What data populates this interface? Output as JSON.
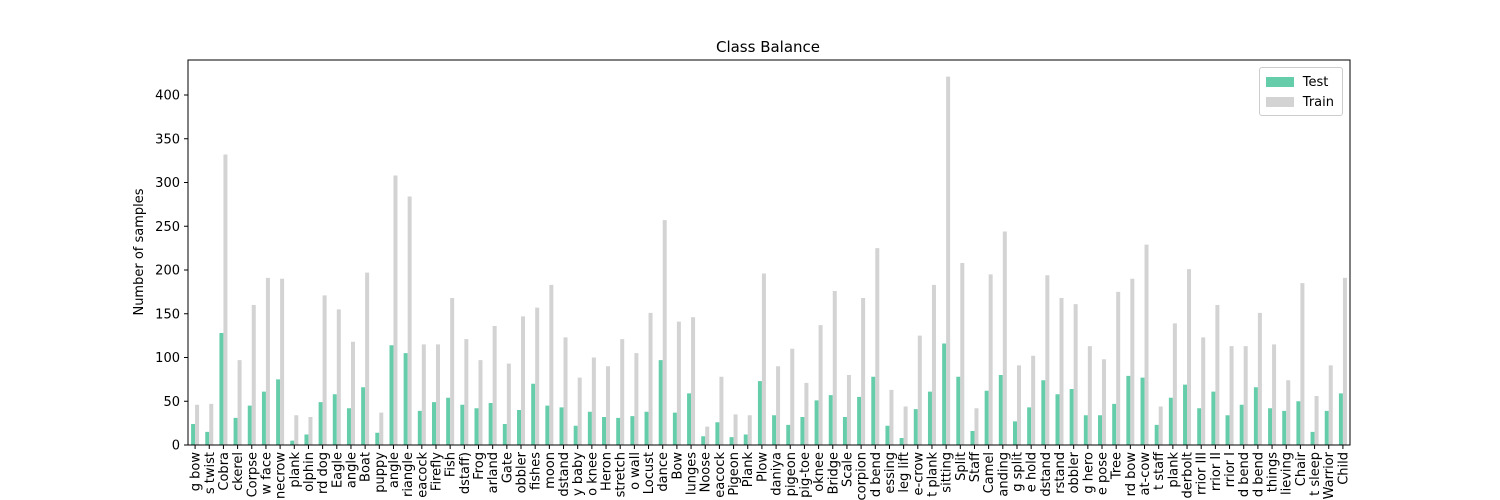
{
  "chart_data": {
    "type": "bar",
    "title": "Class Balance",
    "xlabel": "",
    "ylabel": "Number of samples",
    "ylim": [
      0,
      440
    ],
    "yticks": [
      0,
      50,
      100,
      150,
      200,
      250,
      300,
      350,
      400
    ],
    "grid": false,
    "legend_position": "top-right",
    "categories": [
      "g bow",
      "s twist",
      "Cobra",
      "ckerel",
      "Corpse",
      "w face",
      "necrow",
      "plank",
      "olphin",
      "rd dog",
      "Eagle",
      "angle",
      "Boat",
      "puppy",
      "angle",
      "riangle",
      "eacock",
      "Firefly",
      "Fish",
      "dstaff)",
      "Frog",
      "arland",
      "Gate",
      "obbler",
      "fishes",
      "moon",
      "dstand",
      "y baby",
      "o knee",
      "Heron",
      "stretch",
      "o wall",
      "Locust",
      "dance",
      "Bow",
      "lunges",
      "Noose",
      "eacock",
      "Pigeon",
      "Plank",
      "Plow",
      "daniya",
      "pigeon",
      "pig-toe",
      "oknee",
      "Bridge",
      "Scale",
      "corpion",
      "d bend",
      "essing",
      "leg lift",
      "e-crow",
      "t plank",
      "sitting",
      "Split",
      "Staff",
      "Camel",
      "anding",
      "g split",
      "e hold",
      "dstand",
      "rstand",
      "obbler",
      "g hero",
      "e pose",
      "Tree",
      "rd bow",
      "at-cow",
      "t staff",
      "plank",
      "derbolt",
      "rrior III",
      "rrior II",
      "rrior I",
      "d bend",
      "d bend",
      "things",
      "lieving",
      "Chair",
      "t sleep",
      "Warrior",
      "Child"
    ],
    "series": [
      {
        "name": "Test",
        "color": "#66cdaa",
        "values": [
          24,
          15,
          128,
          31,
          45,
          61,
          75,
          5,
          12,
          49,
          58,
          42,
          66,
          14,
          114,
          105,
          39,
          49,
          54,
          46,
          42,
          48,
          24,
          40,
          70,
          45,
          43,
          22,
          38,
          32,
          31,
          33,
          38,
          97,
          37,
          59,
          10,
          26,
          9,
          12,
          73,
          34,
          23,
          32,
          51,
          57,
          32,
          55,
          78,
          22,
          8,
          41,
          61,
          116,
          78,
          16,
          62,
          80,
          27,
          43,
          74,
          58,
          64,
          34,
          34,
          47,
          79,
          77,
          23,
          54,
          69,
          42,
          61,
          34,
          46,
          66,
          42,
          39,
          50,
          15,
          39,
          59
        ]
      },
      {
        "name": "Train",
        "color": "#d3d3d3",
        "values": [
          46,
          47,
          332,
          97,
          160,
          191,
          190,
          34,
          32,
          171,
          155,
          118,
          197,
          37,
          308,
          284,
          115,
          115,
          168,
          121,
          97,
          136,
          93,
          147,
          157,
          183,
          123,
          77,
          100,
          90,
          121,
          105,
          151,
          257,
          141,
          146,
          21,
          78,
          35,
          34,
          196,
          90,
          110,
          71,
          137,
          176,
          80,
          168,
          225,
          63,
          44,
          125,
          183,
          421,
          208,
          42,
          195,
          244,
          91,
          102,
          194,
          168,
          161,
          113,
          98,
          175,
          190,
          229,
          44,
          139,
          201,
          123,
          160,
          113,
          113,
          151,
          115,
          74,
          185,
          56,
          91,
          191
        ]
      }
    ]
  }
}
